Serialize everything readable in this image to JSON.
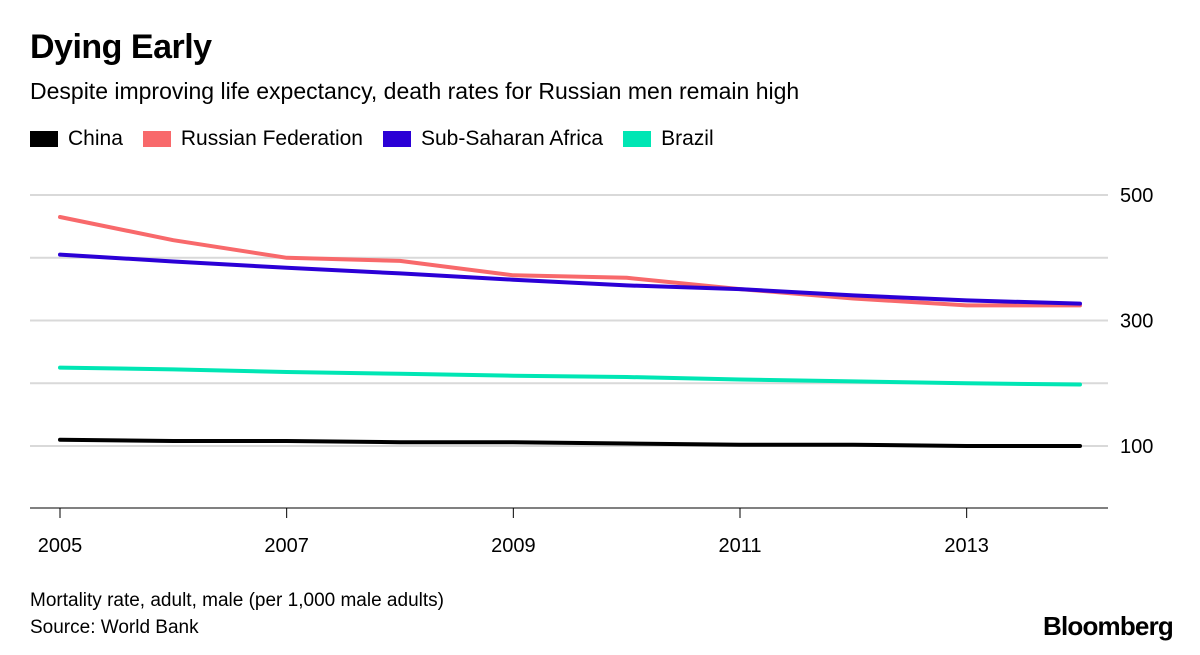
{
  "chart_data": {
    "type": "line",
    "title": "Dying Early",
    "subtitle": "Despite improving life expectancy, death rates for Russian men remain high",
    "xlabel": "",
    "ylabel": "",
    "x": [
      2005,
      2006,
      2007,
      2008,
      2009,
      2010,
      2011,
      2012,
      2013,
      2014
    ],
    "x_ticks": [
      "2005",
      "2007",
      "2009",
      "2011",
      "2013"
    ],
    "y_ticks": [
      "100",
      "300",
      "500"
    ],
    "ylim": [
      0,
      520
    ],
    "grid": true,
    "legend_position": "top",
    "series": [
      {
        "name": "China",
        "color": "#000000",
        "values": [
          110,
          108,
          108,
          106,
          106,
          104,
          102,
          102,
          100,
          100
        ]
      },
      {
        "name": "Russian Federation",
        "color": "#f8696b",
        "values": [
          465,
          428,
          400,
          395,
          372,
          368,
          350,
          335,
          324,
          324
        ]
      },
      {
        "name": "Sub-Saharan Africa",
        "color": "#2b00d6",
        "values": [
          405,
          394,
          384,
          375,
          365,
          356,
          350,
          340,
          332,
          327
        ]
      },
      {
        "name": "Brazil",
        "color": "#00e6b4",
        "values": [
          225,
          222,
          218,
          215,
          212,
          210,
          206,
          203,
          200,
          198
        ]
      }
    ]
  },
  "footer": {
    "note": "Mortality rate, adult, male (per 1,000 male adults)",
    "source": "Source: World Bank",
    "brand": "Bloomberg"
  }
}
